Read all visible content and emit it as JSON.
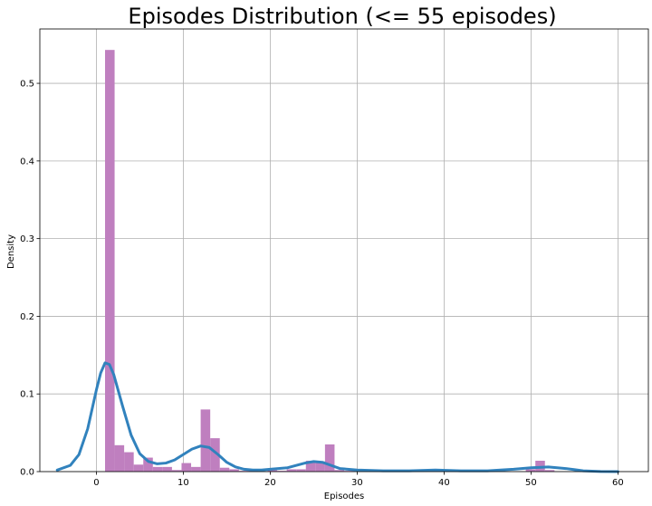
{
  "chart_data": {
    "type": "bar",
    "title": "Episodes Distribution (<= 55 episodes)",
    "xlabel": "Episodes",
    "ylabel": "Density",
    "xlim": [
      -6.5,
      63.5
    ],
    "ylim": [
      0,
      0.57
    ],
    "xticks": [
      0,
      10,
      20,
      30,
      40,
      50,
      60
    ],
    "yticks": [
      0.0,
      0.1,
      0.2,
      0.3,
      0.4,
      0.5
    ],
    "grid": true,
    "bar_color": "#bf7fbf",
    "kde_color": "#3182bd",
    "histogram": {
      "bin_width": 1.1,
      "bins": [
        {
          "x0": 1.0,
          "density": 0.543
        },
        {
          "x0": 2.1,
          "density": 0.034
        },
        {
          "x0": 3.2,
          "density": 0.025
        },
        {
          "x0": 4.3,
          "density": 0.009
        },
        {
          "x0": 5.4,
          "density": 0.018
        },
        {
          "x0": 6.5,
          "density": 0.006
        },
        {
          "x0": 7.6,
          "density": 0.006
        },
        {
          "x0": 8.7,
          "density": 0.002
        },
        {
          "x0": 9.8,
          "density": 0.011
        },
        {
          "x0": 10.9,
          "density": 0.006
        },
        {
          "x0": 12.0,
          "density": 0.08
        },
        {
          "x0": 13.1,
          "density": 0.043
        },
        {
          "x0": 14.2,
          "density": 0.005
        },
        {
          "x0": 15.3,
          "density": 0.003
        },
        {
          "x0": 16.4,
          "density": 0.001
        },
        {
          "x0": 17.5,
          "density": 0.001
        },
        {
          "x0": 19.7,
          "density": 0.002
        },
        {
          "x0": 20.8,
          "density": 0.001
        },
        {
          "x0": 21.9,
          "density": 0.003
        },
        {
          "x0": 23.0,
          "density": 0.003
        },
        {
          "x0": 24.1,
          "density": 0.014
        },
        {
          "x0": 25.2,
          "density": 0.013
        },
        {
          "x0": 26.3,
          "density": 0.035
        },
        {
          "x0": 27.4,
          "density": 0.002
        },
        {
          "x0": 28.5,
          "density": 0.001
        },
        {
          "x0": 38.4,
          "density": 0.001
        },
        {
          "x0": 49.4,
          "density": 0.003
        },
        {
          "x0": 50.5,
          "density": 0.014
        },
        {
          "x0": 51.6,
          "density": 0.002
        }
      ]
    },
    "kde": {
      "x": [
        -4.5,
        -3,
        -2,
        -1,
        0,
        0.5,
        1,
        1.5,
        2,
        3,
        4,
        5,
        6,
        7,
        8,
        9,
        10,
        11,
        12,
        13,
        14,
        15,
        16,
        17,
        18,
        19,
        20,
        22,
        24,
        25,
        26,
        27,
        28,
        30,
        33,
        36,
        39,
        42,
        45,
        48,
        50,
        52,
        54,
        56,
        58,
        60
      ],
      "y": [
        0.002,
        0.008,
        0.022,
        0.055,
        0.105,
        0.127,
        0.14,
        0.138,
        0.125,
        0.085,
        0.047,
        0.023,
        0.013,
        0.01,
        0.011,
        0.015,
        0.022,
        0.029,
        0.033,
        0.031,
        0.022,
        0.012,
        0.006,
        0.003,
        0.002,
        0.002,
        0.003,
        0.005,
        0.011,
        0.013,
        0.012,
        0.008,
        0.004,
        0.002,
        0.001,
        0.001,
        0.002,
        0.001,
        0.001,
        0.003,
        0.005,
        0.006,
        0.004,
        0.001,
        0.0002,
        0.0
      ]
    }
  }
}
